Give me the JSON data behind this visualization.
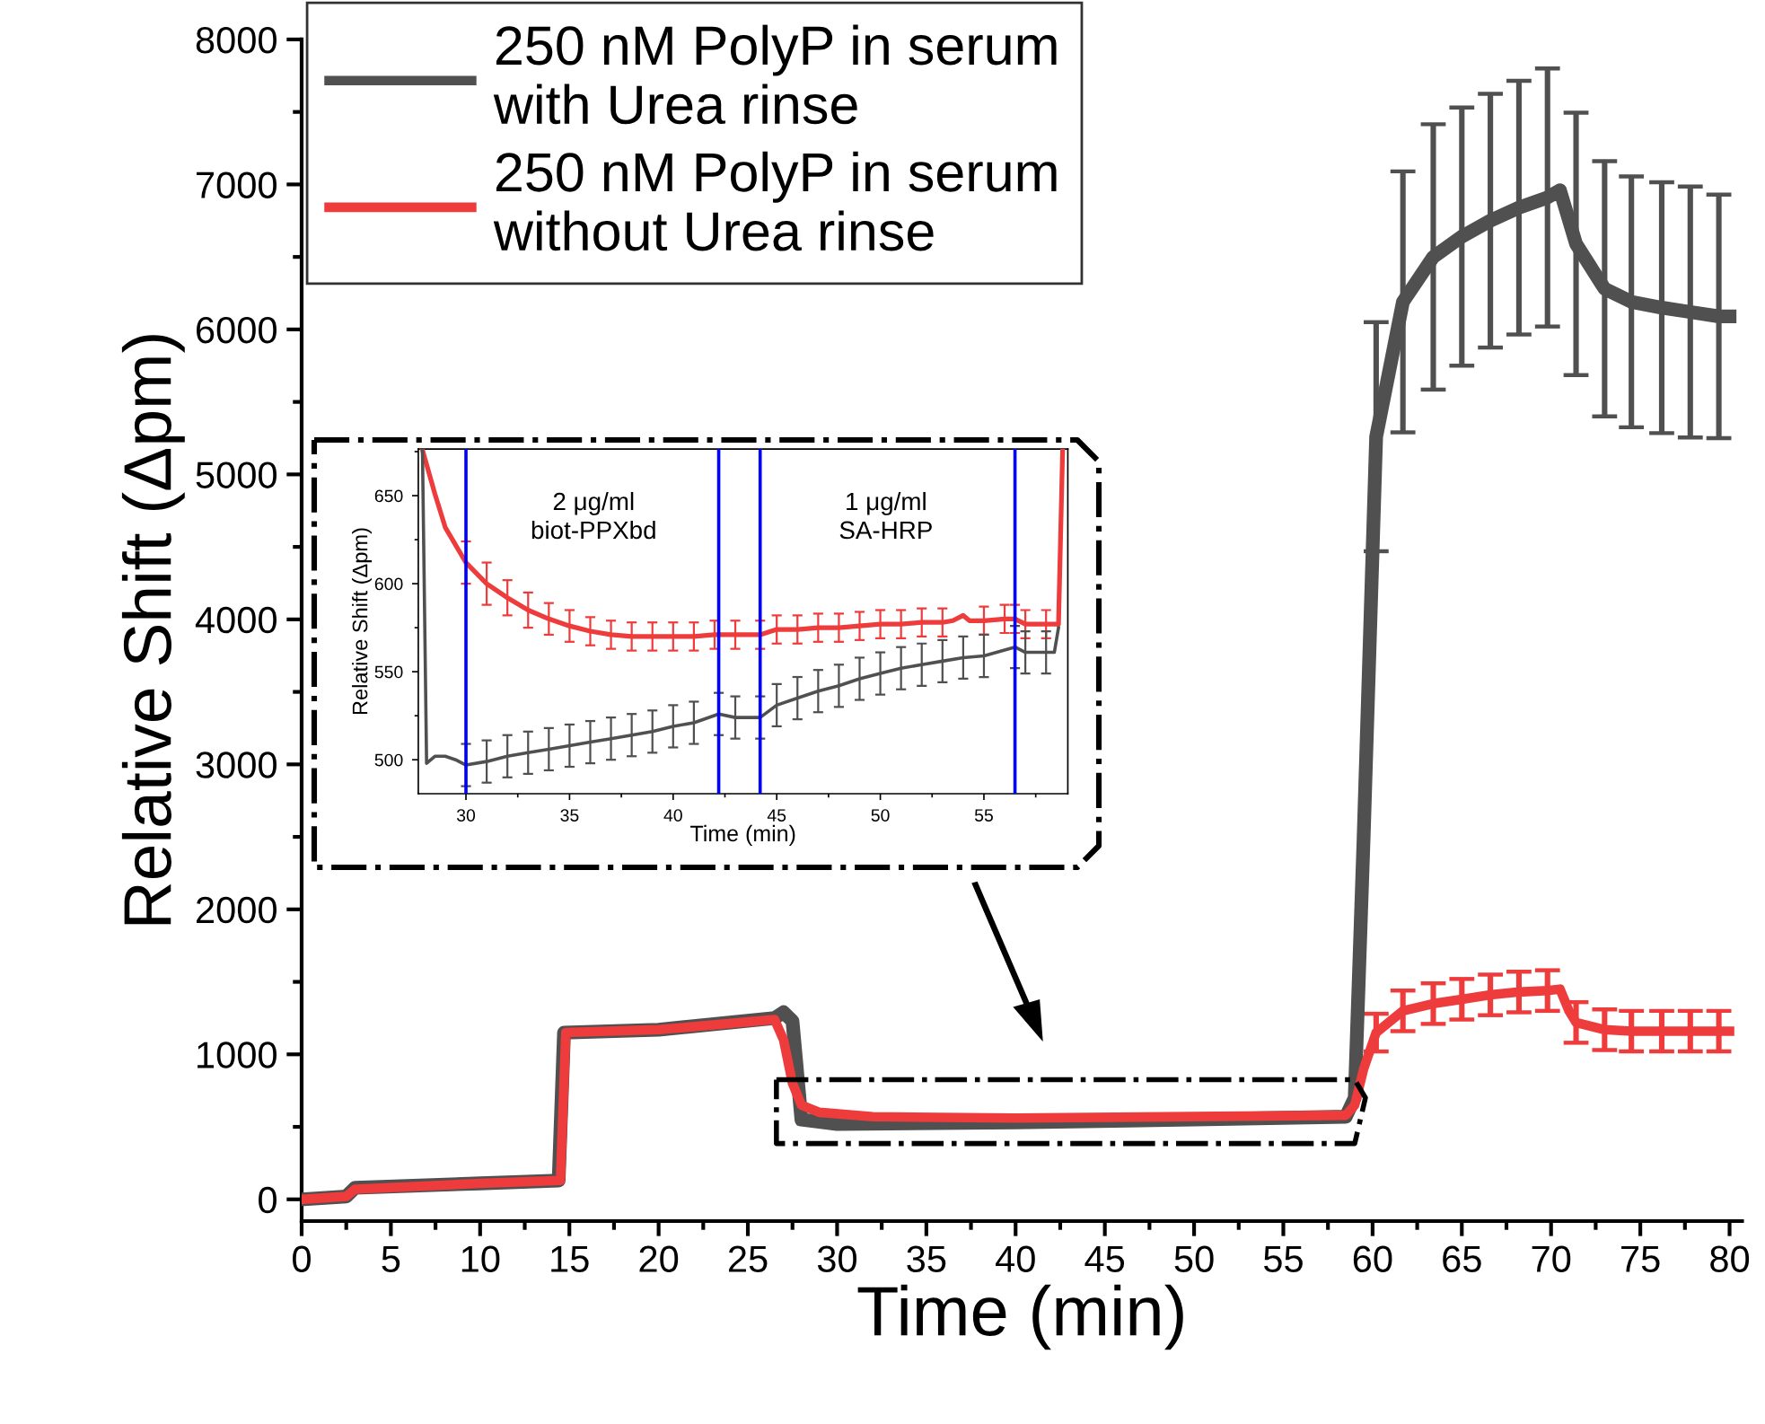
{
  "chart_data": [
    {
      "type": "line",
      "xlabel": "Time (min)",
      "ylabel": "Relative Shift (Δpm)",
      "xlim": [
        0,
        80.7
      ],
      "ylim": [
        -150,
        8000
      ],
      "xticks": [
        0,
        5,
        10,
        15,
        20,
        25,
        30,
        35,
        40,
        45,
        50,
        55,
        60,
        65,
        70,
        75,
        80
      ],
      "yticks": [
        0,
        1000,
        2000,
        3000,
        4000,
        5000,
        6000,
        7000,
        8000
      ],
      "grid": false,
      "legend": "top left",
      "series": [
        {
          "name": "250 nM PolyP in serum\nwith Urea rinse",
          "color": "#505050",
          "x": [
            0,
            2.5,
            3,
            10,
            14.4,
            14.7,
            20,
            26.5,
            27,
            27.5,
            28,
            30,
            40,
            50,
            58.5,
            59,
            59.5,
            60.2,
            61.7,
            63.4,
            65,
            66.6,
            68.2,
            69.8,
            70.5,
            71.4,
            73,
            74.5,
            76.2,
            77.8,
            79.4,
            80
          ],
          "values": [
            0,
            20,
            80,
            110,
            130,
            1150,
            1170,
            1250,
            1290,
            1230,
            550,
            520,
            530,
            550,
            570,
            700,
            2500,
            5260,
            6190,
            6500,
            6640,
            6750,
            6840,
            6910,
            6960,
            6590,
            6280,
            6190,
            6150,
            6120,
            6090,
            6090
          ],
          "errors": [
            null,
            null,
            null,
            null,
            null,
            null,
            null,
            null,
            null,
            null,
            null,
            null,
            null,
            null,
            null,
            null,
            null,
            790,
            900,
            915,
            890,
            875,
            875,
            890,
            null,
            905,
            880,
            865,
            865,
            865,
            840,
            null
          ]
        },
        {
          "name": "250 nM PolyP in serum\nwithout Urea rinse",
          "color": "#ee3b3b",
          "x": [
            0,
            2.5,
            3,
            10,
            14.5,
            14.8,
            20,
            26.5,
            27,
            27.5,
            28,
            29,
            32,
            40,
            58.5,
            59,
            59.5,
            60.2,
            61.7,
            63.4,
            65,
            66.6,
            68.2,
            69.8,
            70.5,
            71,
            71.4,
            73,
            74.5,
            76.2,
            77.8,
            79.4,
            80
          ],
          "values": [
            0,
            20,
            70,
            110,
            130,
            1150,
            1170,
            1240,
            1100,
            800,
            650,
            600,
            570,
            560,
            580,
            650,
            900,
            1150,
            1300,
            1350,
            1380,
            1410,
            1430,
            1440,
            1450,
            1300,
            1220,
            1170,
            1160,
            1160,
            1160,
            1160,
            1160
          ],
          "errors": [
            null,
            null,
            null,
            null,
            null,
            null,
            null,
            null,
            null,
            null,
            null,
            null,
            null,
            null,
            null,
            null,
            null,
            130,
            140,
            140,
            140,
            140,
            140,
            140,
            null,
            null,
            140,
            140,
            140,
            140,
            140,
            140,
            null
          ]
        }
      ]
    },
    {
      "type": "line",
      "xlabel": "Time (min)",
      "ylabel": "Relative Shift (Δpm)",
      "xlim": [
        27.7,
        59.05
      ],
      "ylim": [
        480.7,
        676.5
      ],
      "xticks": [
        30,
        35,
        40,
        45,
        50,
        55
      ],
      "yticks": [
        500,
        550,
        600,
        650
      ],
      "grid": false,
      "ref_lines": [
        {
          "axis": "x",
          "value": 30,
          "color": "#0000ff"
        },
        {
          "axis": "x",
          "value": 42.2,
          "color": "#0000ff"
        },
        {
          "axis": "x",
          "value": 44.2,
          "color": "#0000ff"
        },
        {
          "axis": "x",
          "value": 56.5,
          "color": "#0000ff"
        }
      ],
      "annotations": [
        "2 μg/ml\nbiot-PPXbd",
        "1 μg/ml\nSA-HRP"
      ],
      "series": [
        {
          "color": "#ee3b3b",
          "x": [
            27.9,
            28.5,
            29,
            30,
            31,
            32,
            33,
            34,
            35,
            36,
            37,
            38,
            39,
            40,
            41,
            42,
            43,
            44.2,
            45,
            46,
            47,
            48,
            49,
            50,
            51,
            52,
            53,
            53.5,
            54,
            54.3,
            55,
            56,
            56.5,
            57,
            58,
            58.6,
            58.8
          ],
          "values": [
            676,
            651,
            632,
            612,
            600,
            592,
            585,
            580,
            576,
            573,
            571,
            570,
            570,
            570,
            570,
            571,
            571,
            571,
            574,
            574,
            575,
            575,
            576,
            577,
            577,
            578,
            578,
            579,
            582,
            579,
            579,
            580,
            580,
            577,
            577,
            577,
            676
          ],
          "errors": [
            null,
            null,
            null,
            12,
            12,
            10,
            10,
            9,
            9,
            8,
            8,
            8,
            8,
            8,
            8,
            8,
            8,
            8,
            8,
            8,
            8,
            8,
            8,
            8,
            8,
            8,
            8,
            null,
            null,
            null,
            8,
            8,
            8,
            8,
            8,
            null,
            null
          ]
        },
        {
          "color": "#505050",
          "x": [
            27.9,
            28.1,
            28.5,
            29,
            29.5,
            30,
            31,
            32,
            33,
            34,
            35,
            36,
            37,
            38,
            39,
            40,
            41,
            42.2,
            43,
            44.2,
            45,
            46,
            47,
            48,
            49,
            50,
            51,
            52,
            53,
            54,
            55,
            56.5,
            57,
            58,
            58.4,
            58.6
          ],
          "values": [
            676,
            498,
            502,
            502,
            500,
            497,
            499,
            502,
            504,
            506,
            508,
            510,
            512,
            514,
            516,
            519,
            521,
            526,
            524,
            524,
            531,
            535,
            539,
            542,
            546,
            549,
            552,
            554,
            556,
            558,
            559,
            564,
            561,
            561,
            561,
            575
          ],
          "errors": [
            null,
            null,
            null,
            null,
            null,
            12,
            12,
            12,
            12,
            12,
            12,
            12,
            12,
            12,
            12,
            12,
            12,
            12,
            12,
            12,
            12,
            12,
            12,
            12,
            12,
            12,
            12,
            12,
            12,
            12,
            12,
            12,
            12,
            12,
            null,
            null
          ]
        }
      ]
    }
  ]
}
